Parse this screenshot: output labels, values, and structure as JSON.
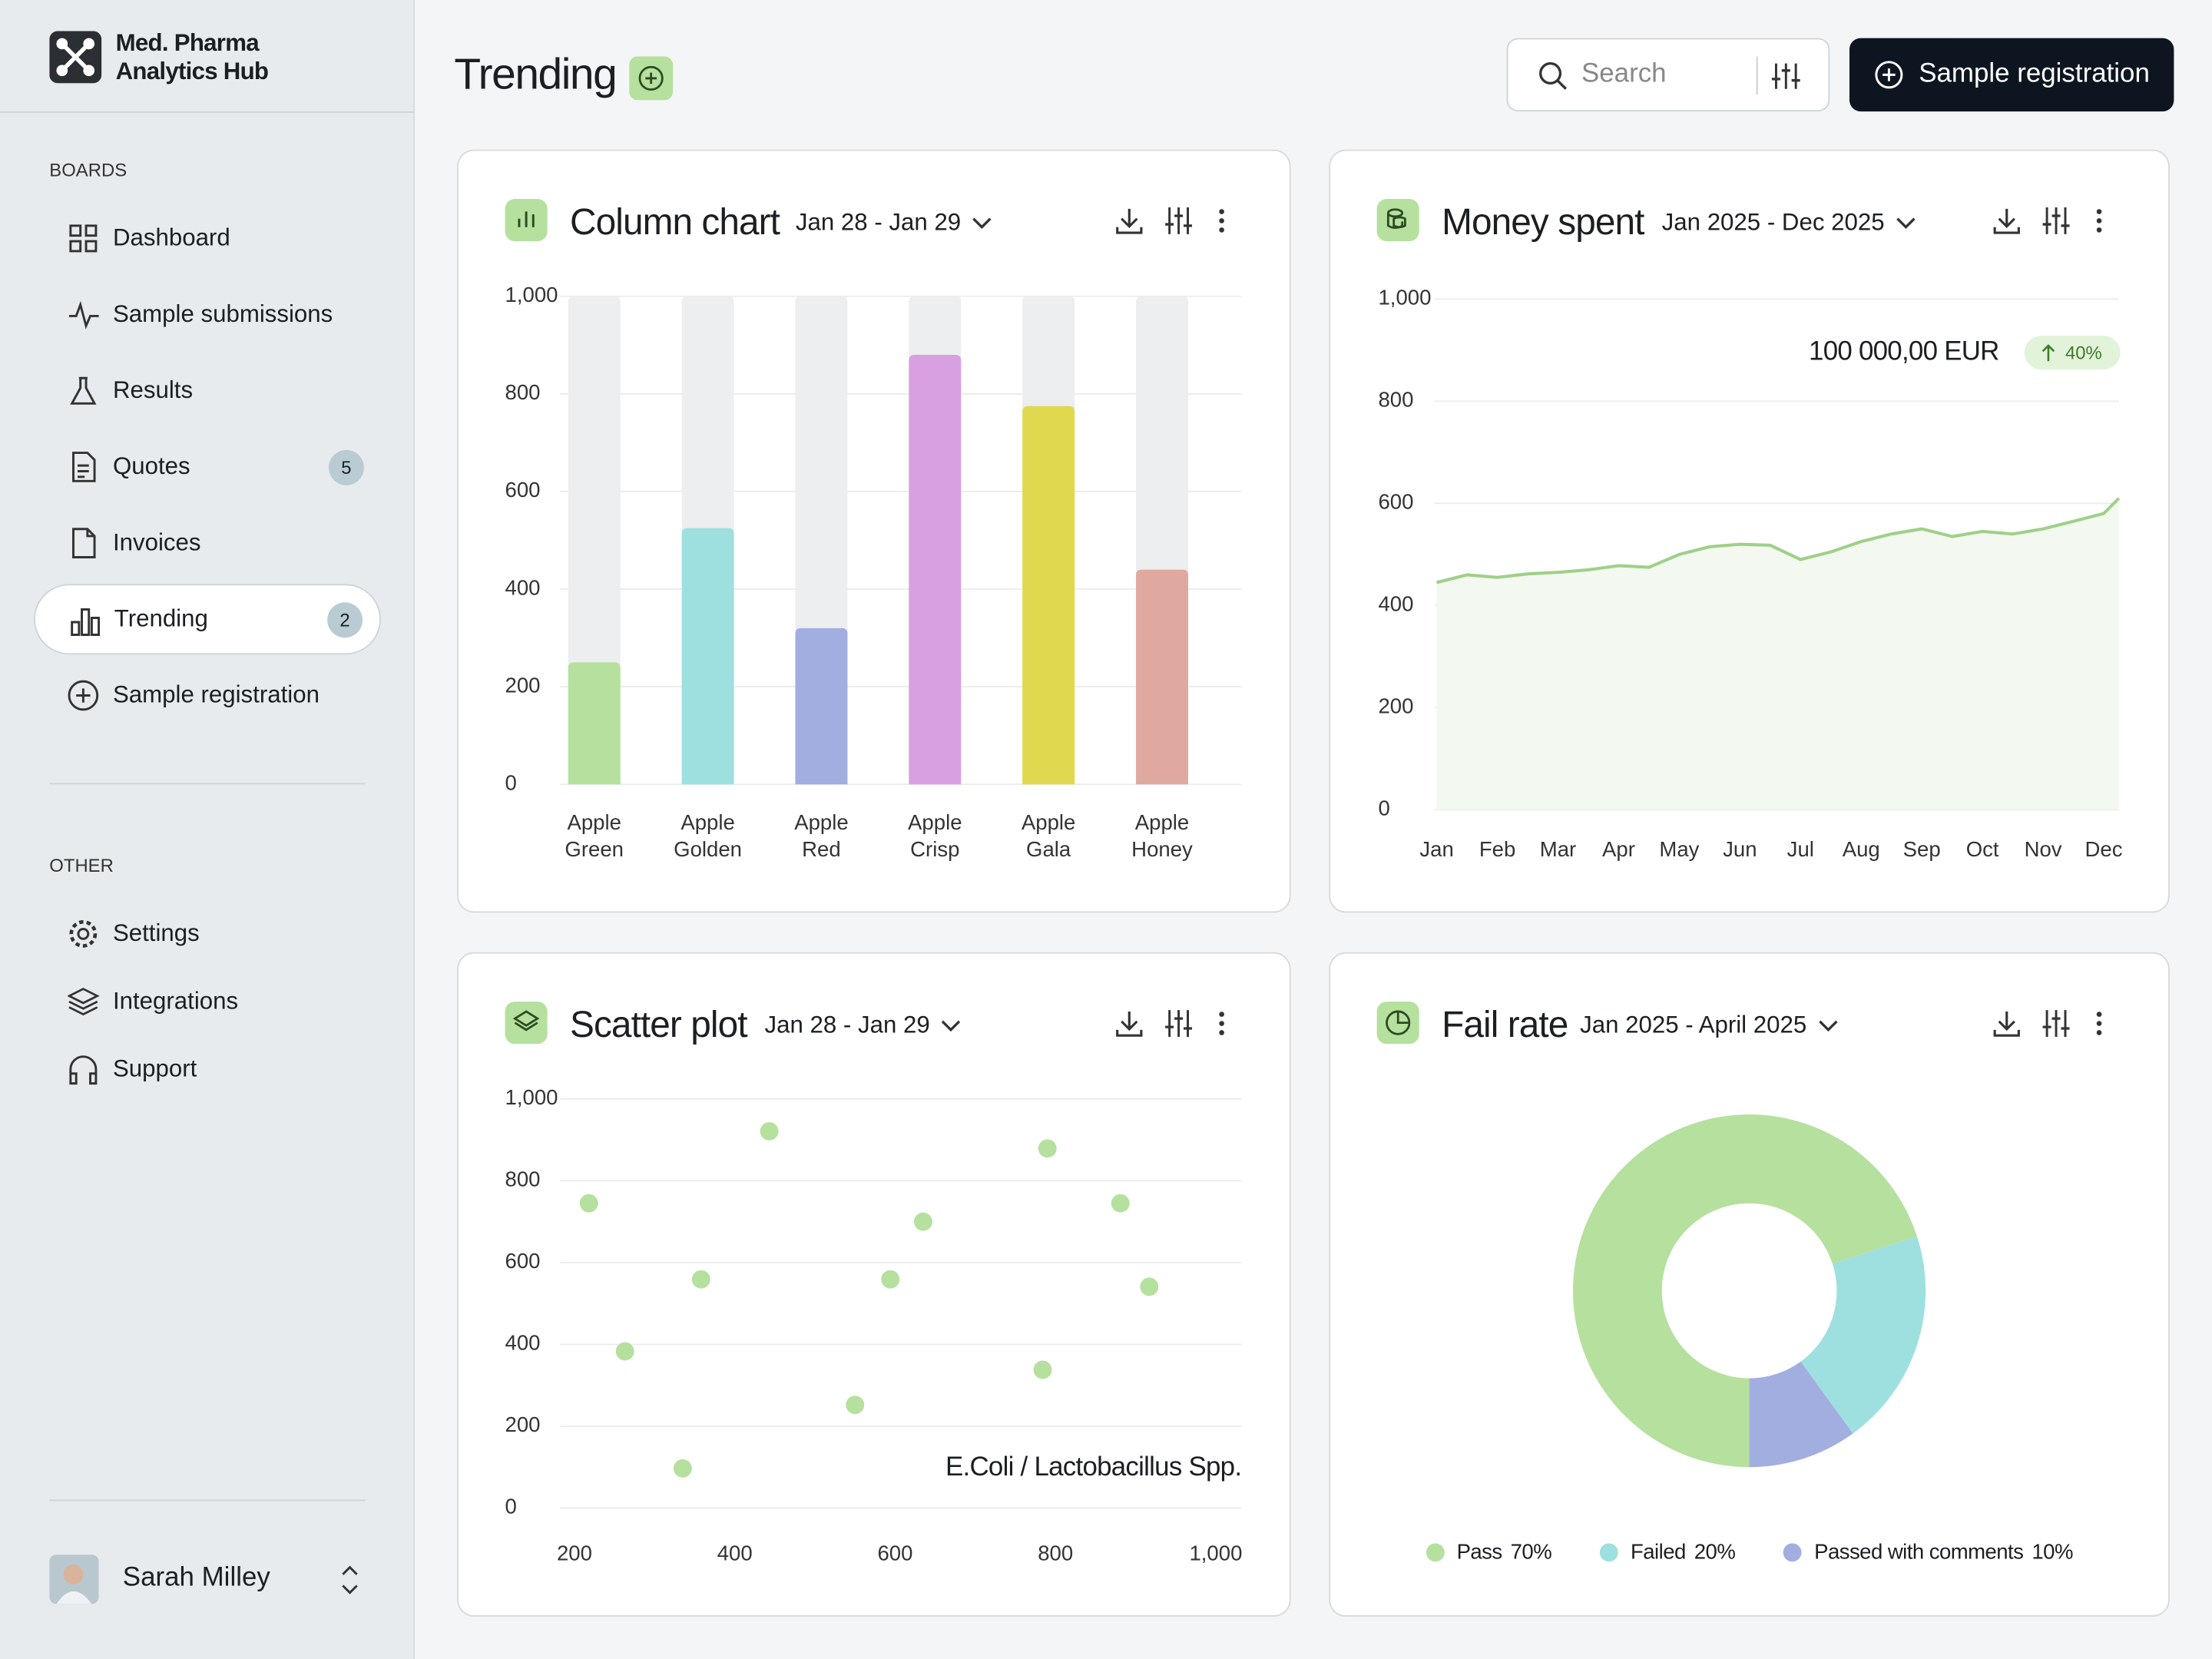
{
  "sidebar": {
    "brand": "Med. Pharma Analytics Hub",
    "sections": [
      {
        "title": "BOARDS",
        "items": [
          {
            "label": "Dashboard"
          },
          {
            "label": "Sample submissions"
          },
          {
            "label": "Results"
          },
          {
            "label": "Quotes",
            "badge": 5
          },
          {
            "label": "Invoices"
          },
          {
            "label": "Trending",
            "badge": 2,
            "active": true
          },
          {
            "label": "Sample registration"
          }
        ]
      },
      {
        "title": "OTHER",
        "items": [
          {
            "label": "Settings"
          },
          {
            "label": "Integrations"
          },
          {
            "label": "Support"
          }
        ]
      }
    ],
    "user": "Sarah Milley"
  },
  "header": {
    "title": "Trending",
    "search": "Search",
    "button": "Sample registration"
  },
  "chart_data": [
    {
      "type": "bar",
      "title": "Column chart",
      "date_range": "Jan 28 - Jan 29",
      "categories": [
        "Apple Green",
        "Apple Golden",
        "Apple Red",
        "Apple Crisp",
        "Apple Gala",
        "Apple Honey"
      ],
      "values": [
        250,
        525,
        320,
        880,
        775,
        440
      ],
      "colors": [
        "#b5e09e",
        "#9ee0e0",
        "#a2aee0",
        "#d8a0e0",
        "#e0d950",
        "#e0a9a0"
      ],
      "ylim": [
        0,
        1000
      ],
      "yticks": [
        0,
        200,
        400,
        600,
        800,
        {
          "value": 1000,
          "label": "1,000"
        }
      ],
      "grid": true
    },
    {
      "type": "line",
      "title": "Money spent",
      "date_range": "Jan 2025 - Dec 2025",
      "x": [
        0,
        0.5,
        1,
        1.5,
        2,
        2.5,
        3,
        3.5,
        4,
        4.5,
        5,
        5.5,
        6,
        6.5,
        7,
        7.5,
        8,
        8.5,
        9,
        9.5,
        10,
        10.5,
        11,
        11.25
      ],
      "values": [
        445,
        460,
        455,
        462,
        465,
        470,
        478,
        475,
        500,
        515,
        520,
        518,
        490,
        505,
        525,
        540,
        550,
        535,
        545,
        540,
        550,
        565,
        580,
        610
      ],
      "color": "#9fd088",
      "xlim": [
        -0.15,
        11.25
      ],
      "xticks": [
        {
          "value": 0,
          "label": "Jan"
        },
        {
          "value": 1,
          "label": "Feb"
        },
        {
          "value": 2,
          "label": "Mar"
        },
        {
          "value": 3,
          "label": "Apr"
        },
        {
          "value": 4,
          "label": "May"
        },
        {
          "value": 5,
          "label": "Jun"
        },
        {
          "value": 6,
          "label": "Jul"
        },
        {
          "value": 7,
          "label": "Aug"
        },
        {
          "value": 8,
          "label": "Sep"
        },
        {
          "value": 9,
          "label": "Oct"
        },
        {
          "value": 10,
          "label": "Nov"
        },
        {
          "value": 11,
          "label": "Dec"
        }
      ],
      "ylim": [
        0,
        1000
      ],
      "yticks": [
        0,
        200,
        400,
        600,
        800,
        {
          "value": 1000,
          "label": "1,000"
        }
      ],
      "grid": true,
      "annotation": "100 000,00 EUR",
      "badge": "40%"
    },
    {
      "type": "scatter",
      "title": "Scatter plot",
      "date_range": "Jan 28 - Jan 29",
      "x": [
        218,
        263,
        335,
        358,
        443,
        550,
        594,
        635,
        784,
        790,
        881,
        917
      ],
      "values": [
        745,
        383,
        97,
        559,
        921,
        252,
        559,
        700,
        338,
        879,
        745,
        541
      ],
      "color": "#b5e09e",
      "xlim": [
        182,
        1032
      ],
      "xticks": [
        200,
        400,
        600,
        800,
        {
          "value": 1000,
          "label": "1,000"
        }
      ],
      "ylim": [
        0,
        1000
      ],
      "yticks": [
        0,
        200,
        400,
        600,
        800,
        {
          "value": 1000,
          "label": "1,000"
        }
      ],
      "grid": true,
      "annotation": "E.Coli / Lactobacillus Spp."
    },
    {
      "type": "donut",
      "title": "Fail rate",
      "date_range": "Jan 2025 - April 2025",
      "categories": [
        "Pass",
        "Failed",
        "Passed with comments"
      ],
      "values": [
        70,
        20,
        10
      ],
      "value_labels": [
        "70%",
        "20%",
        "10%"
      ],
      "colors": [
        "#b5e09e",
        "#9ee0e0",
        "#a2aee0"
      ]
    }
  ]
}
